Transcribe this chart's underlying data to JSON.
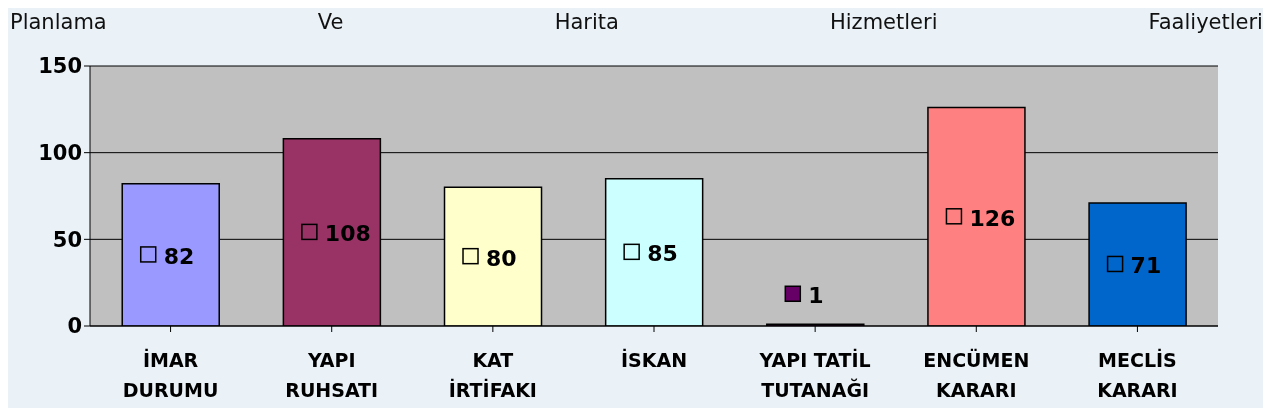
{
  "chart_data": {
    "type": "bar",
    "title": "Planlama Ve Harita Hizmetleri Faaliyetleri",
    "categories": [
      "İMAR DURUMU",
      "YAPI RUHSATI",
      "KAT İRTİFAKI",
      "İSKAN",
      "YAPI TATİL TUTANAĞI",
      "ENCÜMEN KARARI",
      "MECLİS KARARI"
    ],
    "values": [
      82,
      108,
      80,
      85,
      1,
      126,
      71
    ],
    "colors": [
      "#9999ff",
      "#993366",
      "#ffffcc",
      "#ccffff",
      "#660066",
      "#ff8080",
      "#0066cc"
    ],
    "ylim": [
      0,
      150
    ],
    "yticks": [
      0,
      50,
      100,
      150
    ],
    "grid": "y",
    "data_labels": true
  }
}
